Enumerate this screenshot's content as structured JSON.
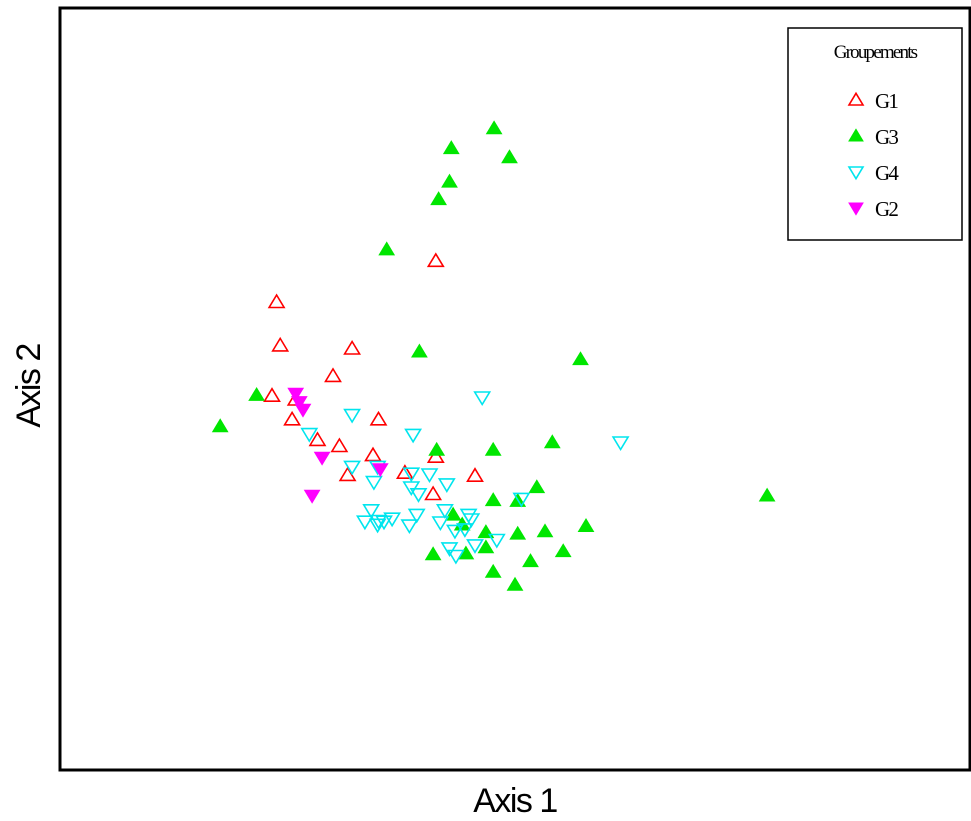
{
  "chart_data": {
    "type": "scatter",
    "title": "",
    "xlabel": "Axis 1",
    "ylabel": "Axis 2",
    "xlim": [
      0,
      100
    ],
    "ylim": [
      0,
      100
    ],
    "grid": false,
    "ticks": false,
    "legend": {
      "title": "Groupements",
      "position": "top-right"
    },
    "series": [
      {
        "name": "G1",
        "marker": "triangle-up-open",
        "color": "#ff0000",
        "points": [
          [
            41.3,
            66.8
          ],
          [
            23.8,
            61.4
          ],
          [
            24.2,
            55.7
          ],
          [
            32.1,
            55.3
          ],
          [
            30.0,
            51.7
          ],
          [
            23.3,
            49.1
          ],
          [
            25.9,
            48.6
          ],
          [
            25.5,
            46.0
          ],
          [
            35.0,
            46.0
          ],
          [
            28.3,
            43.3
          ],
          [
            30.7,
            42.5
          ],
          [
            34.4,
            41.3
          ],
          [
            41.3,
            41.1
          ],
          [
            31.6,
            38.7
          ],
          [
            37.9,
            39.0
          ],
          [
            45.6,
            38.6
          ],
          [
            41.0,
            36.2
          ]
        ]
      },
      {
        "name": "G3",
        "marker": "triangle-up-filled",
        "color": "#00e600",
        "points": [
          [
            47.7,
            84.2
          ],
          [
            43.0,
            81.6
          ],
          [
            49.4,
            80.4
          ],
          [
            42.8,
            77.2
          ],
          [
            41.6,
            74.9
          ],
          [
            35.9,
            68.3
          ],
          [
            39.5,
            54.9
          ],
          [
            57.2,
            53.9
          ],
          [
            21.6,
            49.2
          ],
          [
            17.6,
            45.1
          ],
          [
            41.4,
            42.0
          ],
          [
            47.6,
            42.0
          ],
          [
            54.1,
            43.0
          ],
          [
            52.4,
            37.1
          ],
          [
            77.7,
            36.0
          ],
          [
            47.6,
            35.4
          ],
          [
            50.3,
            35.3
          ],
          [
            43.2,
            33.5
          ],
          [
            57.8,
            32.0
          ],
          [
            44.2,
            32.2
          ],
          [
            46.8,
            31.2
          ],
          [
            53.3,
            31.3
          ],
          [
            50.3,
            31.0
          ],
          [
            55.3,
            28.7
          ],
          [
            46.8,
            29.2
          ],
          [
            41.0,
            28.3
          ],
          [
            44.6,
            28.4
          ],
          [
            51.7,
            27.4
          ],
          [
            47.6,
            26.0
          ],
          [
            50.0,
            24.3
          ]
        ]
      },
      {
        "name": "G4",
        "marker": "triangle-down-open",
        "color": "#00e5ee",
        "points": [
          [
            46.4,
            48.9
          ],
          [
            32.1,
            46.6
          ],
          [
            27.4,
            44.1
          ],
          [
            38.8,
            44.0
          ],
          [
            32.1,
            39.8
          ],
          [
            34.9,
            39.8
          ],
          [
            38.6,
            38.9
          ],
          [
            40.6,
            38.8
          ],
          [
            34.5,
            37.8
          ],
          [
            38.6,
            37.1
          ],
          [
            42.5,
            37.5
          ],
          [
            39.4,
            36.2
          ],
          [
            50.7,
            35.6
          ],
          [
            34.2,
            34.1
          ],
          [
            42.3,
            34.1
          ],
          [
            39.2,
            33.5
          ],
          [
            44.9,
            33.5
          ],
          [
            33.5,
            32.6
          ],
          [
            35.0,
            32.7
          ],
          [
            36.5,
            33.0
          ],
          [
            35.6,
            32.6
          ],
          [
            34.9,
            32.2
          ],
          [
            45.2,
            32.9
          ],
          [
            41.8,
            32.5
          ],
          [
            43.4,
            31.4
          ],
          [
            44.5,
            31.6
          ],
          [
            48.0,
            30.2
          ],
          [
            38.4,
            32.1
          ],
          [
            42.8,
            29.1
          ],
          [
            43.5,
            28.1
          ],
          [
            45.6,
            29.5
          ],
          [
            61.6,
            43.0
          ]
        ]
      },
      {
        "name": "G2",
        "marker": "triangle-down-filled",
        "color": "#ff00ff",
        "points": [
          [
            25.9,
            49.4
          ],
          [
            26.3,
            48.3
          ],
          [
            26.7,
            47.3
          ],
          [
            28.8,
            41.0
          ],
          [
            35.2,
            39.5
          ],
          [
            27.7,
            36.0
          ]
        ]
      }
    ]
  }
}
